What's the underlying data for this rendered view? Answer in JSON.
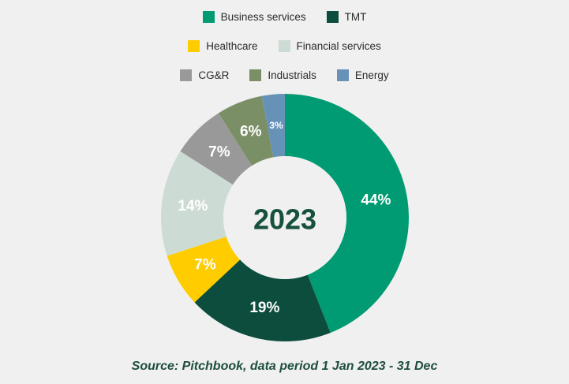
{
  "chart_data": {
    "type": "pie",
    "center_label": "2023",
    "slices": [
      {
        "name": "Business services",
        "value": 44,
        "label": "44%",
        "color": "#009b72"
      },
      {
        "name": "TMT",
        "value": 19,
        "label": "19%",
        "color": "#0d4d3e"
      },
      {
        "name": "Healthcare",
        "value": 7,
        "label": "7%",
        "color": "#ffcc00"
      },
      {
        "name": "Financial services",
        "value": 14,
        "label": "14%",
        "color": "#ccdcd4"
      },
      {
        "name": "CG&R",
        "value": 7,
        "label": "7%",
        "color": "#999999"
      },
      {
        "name": "Industrials",
        "value": 6,
        "label": "6%",
        "color": "#7a8f66"
      },
      {
        "name": "Energy",
        "value": 3,
        "label": "3%",
        "color": "#6692b8"
      }
    ],
    "legend": {
      "rows": [
        [
          "Business services",
          "TMT"
        ],
        [
          "Healthcare",
          "Financial services"
        ],
        [
          "CG&R",
          "Industrials",
          "Energy"
        ]
      ]
    }
  },
  "source": "Source: Pitchbook, data period 1 Jan 2023 - 31 Dec"
}
